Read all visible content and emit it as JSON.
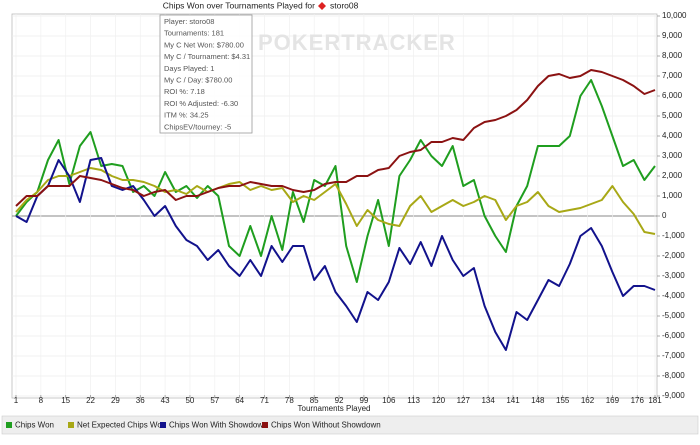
{
  "chart_data": {
    "type": "line",
    "title": "Chips Won over Tournaments Played for",
    "player": "storo08",
    "xlabel": "Tournaments Played",
    "watermark": "POKERTRACKER",
    "tooltip": [
      "Player: storo08",
      "Tournaments: 181",
      "My C Net Won: $780.00",
      "My C / Tournament: $4.31",
      "Days Played: 1",
      "My C / Day: $780.00",
      "ROI %: 7.18",
      "ROI % Adjusted: -6.30",
      "ITM %: 34.25",
      "ChipsEV/tourney: -5"
    ],
    "x": [
      1,
      4,
      7,
      10,
      13,
      16,
      19,
      22,
      25,
      28,
      31,
      34,
      37,
      40,
      43,
      46,
      49,
      52,
      55,
      58,
      61,
      64,
      67,
      70,
      73,
      76,
      79,
      82,
      85,
      88,
      91,
      94,
      97,
      100,
      103,
      106,
      109,
      112,
      115,
      118,
      121,
      124,
      127,
      130,
      133,
      136,
      139,
      142,
      145,
      148,
      151,
      154,
      157,
      160,
      163,
      166,
      169,
      172,
      175,
      178,
      181
    ],
    "xlim": [
      1,
      181
    ],
    "xticks": [
      1,
      8,
      15,
      22,
      29,
      36,
      43,
      50,
      57,
      64,
      71,
      78,
      85,
      92,
      99,
      106,
      113,
      120,
      127,
      134,
      141,
      148,
      155,
      162,
      169,
      176,
      181
    ],
    "ylim": [
      -9000,
      10000
    ],
    "yticks": [
      {
        "value": 10000,
        "label": "10,000"
      },
      {
        "value": 9000,
        "label": "9,000"
      },
      {
        "value": 8000,
        "label": "8,000"
      },
      {
        "value": 7000,
        "label": "7,000"
      },
      {
        "value": 6000,
        "label": "6,000"
      },
      {
        "value": 5000,
        "label": "5,000"
      },
      {
        "value": 4000,
        "label": "4,000"
      },
      {
        "value": 3000,
        "label": "3,000"
      },
      {
        "value": 2000,
        "label": "2,000"
      },
      {
        "value": 1000,
        "label": "1,000"
      },
      0,
      {
        "value": -1000,
        "label": "-1,000"
      },
      {
        "value": -2000,
        "label": "-2,000"
      },
      {
        "value": -3000,
        "label": "-3,000"
      },
      {
        "value": -4000,
        "label": "-4,000"
      },
      {
        "value": -5000,
        "label": "-5,000"
      },
      {
        "value": -6000,
        "label": "-6,000"
      },
      {
        "value": -7000,
        "label": "-7,000"
      },
      {
        "value": -8000,
        "label": "-8,000"
      },
      {
        "value": -9000,
        "label": "-9,000"
      }
    ],
    "grid": true,
    "series": [
      {
        "name": "Chips Won",
        "color": "#1f9e1f",
        "values": [
          0,
          700,
          1200,
          2800,
          3800,
          1600,
          3500,
          4200,
          2500,
          2600,
          2500,
          1200,
          1500,
          1000,
          2200,
          1200,
          1500,
          900,
          1500,
          1000,
          -1500,
          -2000,
          -500,
          -2000,
          0,
          -1700,
          1200,
          -300,
          1800,
          1500,
          2500,
          -1500,
          -3300,
          -1000,
          800,
          -1500,
          2000,
          2800,
          3800,
          3000,
          2500,
          3500,
          1500,
          1800,
          0,
          -1000,
          -1800,
          500,
          1500,
          3500,
          3500,
          3500,
          4000,
          6000,
          6800,
          5500,
          4000,
          2500,
          2800,
          1800,
          2500
        ]
      },
      {
        "name": "Net Expected Chips Won",
        "color": "#a8a816",
        "values": [
          200,
          800,
          1200,
          1800,
          2000,
          2000,
          2200,
          2400,
          2300,
          2000,
          1800,
          1800,
          1700,
          1500,
          1200,
          1300,
          1100,
          1500,
          1200,
          1400,
          1600,
          1700,
          1300,
          1500,
          1300,
          1400,
          700,
          1000,
          800,
          1200,
          1600,
          600,
          -500,
          300,
          -200,
          -400,
          -500,
          500,
          1000,
          200,
          500,
          800,
          500,
          700,
          1000,
          800,
          -200,
          500,
          700,
          1200,
          500,
          200,
          300,
          400,
          600,
          800,
          1500,
          700,
          100,
          -800,
          -900
        ]
      },
      {
        "name": "Chips Won With Showdown",
        "color": "#12128c",
        "values": [
          0,
          -300,
          1000,
          1500,
          2800,
          2000,
          700,
          2800,
          2900,
          1500,
          1300,
          1500,
          800,
          0,
          500,
          -500,
          -1200,
          -1500,
          -2200,
          -1700,
          -2500,
          -3000,
          -2200,
          -3000,
          -1500,
          -2300,
          -1500,
          -1500,
          -3200,
          -2500,
          -3800,
          -4500,
          -5300,
          -3800,
          -4200,
          -3300,
          -1600,
          -2400,
          -1300,
          -2500,
          -1000,
          -2200,
          -3000,
          -2600,
          -4500,
          -5800,
          -6700,
          -4800,
          -5200,
          -4200,
          -3200,
          -3500,
          -2400,
          -1000,
          -600,
          -1500,
          -2800,
          -4000,
          -3500,
          -3500,
          -3700
        ]
      },
      {
        "name": "Chips Won Without Showdown",
        "color": "#8b1212",
        "values": [
          500,
          1000,
          1000,
          1500,
          1500,
          1500,
          2000,
          1900,
          1800,
          1600,
          1400,
          1300,
          1000,
          1200,
          1300,
          800,
          1000,
          1000,
          1200,
          1400,
          1500,
          1500,
          1700,
          1600,
          1500,
          1500,
          1300,
          1200,
          1300,
          1600,
          1700,
          1700,
          2000,
          2000,
          2300,
          2400,
          3000,
          3200,
          3300,
          3700,
          3700,
          3900,
          3800,
          4400,
          4700,
          4800,
          5000,
          5300,
          5800,
          6500,
          7000,
          7100,
          6900,
          7000,
          7300,
          7200,
          7000,
          6800,
          6500,
          6100,
          6300
        ]
      }
    ]
  }
}
